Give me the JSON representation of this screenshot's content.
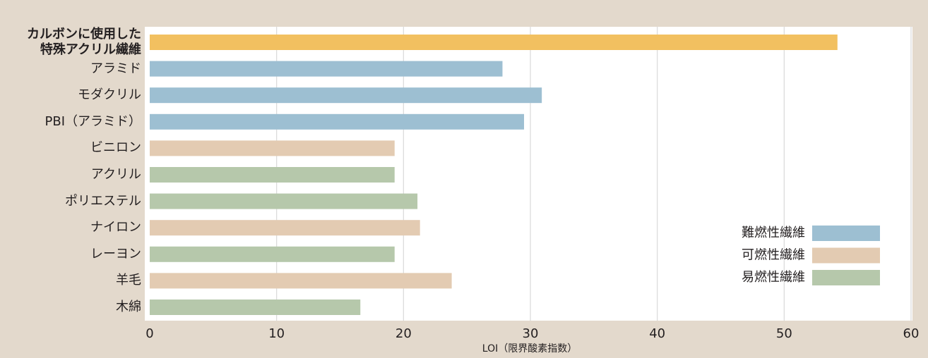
{
  "chart_data": {
    "type": "bar",
    "orientation": "horizontal",
    "categories": [
      "カルボンに使用した\n特殊アクリル繊維",
      "アラミド",
      "モダクリル",
      "PBI（アラミド）",
      "ビニロン",
      "アクリル",
      "ポリエステル",
      "ナイロン",
      "レーヨン",
      "羊毛",
      "木綿"
    ],
    "values": [
      54.2,
      27.8,
      30.9,
      29.5,
      19.3,
      19.3,
      21.1,
      21.3,
      19.3,
      23.8,
      16.6
    ],
    "bar_colors": [
      "#f2c060",
      "#9dbfd2",
      "#9dbfd2",
      "#9dbfd2",
      "#e3cbb2",
      "#b6c8ab",
      "#b6c8ab",
      "#e3cbb2",
      "#b6c8ab",
      "#e3cbb2",
      "#b6c8ab"
    ],
    "legend": [
      {
        "name": "難燃性繊維",
        "color": "#9dbfd2"
      },
      {
        "name": "可燃性繊維",
        "color": "#e3cbb2"
      },
      {
        "name": "易燃性繊維",
        "color": "#b6c8ab"
      }
    ],
    "legend_position": "lower right",
    "xlabel": "LOI（限界酸素指数）",
    "xlim": [
      0,
      60
    ],
    "xticks": [
      0,
      10,
      20,
      30,
      40,
      50,
      60
    ],
    "grid": true
  }
}
